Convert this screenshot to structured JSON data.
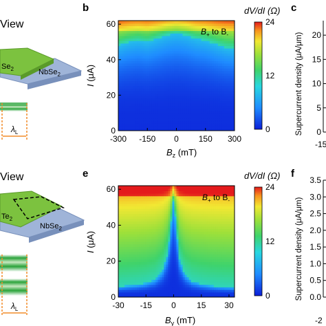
{
  "panels": {
    "a_title": "View",
    "d_title": "View",
    "b_letter": "b",
    "c_letter": "c",
    "e_letter": "e",
    "f_letter": "f",
    "nbse2_top": "NbSe",
    "nbse2_top_sub": "2",
    "se2_top": "Se",
    "se2_top_sub": "2",
    "nbse2_bottom": "NbSe",
    "nbse2_bottom_sub": "2",
    "te2_bottom": "Te",
    "te2_bottom_sub": "2",
    "lambda_top": "λ",
    "lambda_top_sub": "L",
    "lambda_bottom": "λ",
    "lambda_bottom_sub": "L"
  },
  "colors": {
    "flake_green": "#7cc23f",
    "flake_green_dark": "#5a9a2a",
    "substrate_blue": "#9fb4d8",
    "substrate_blue_dark": "#7890bb",
    "lambda_orange": "#f28c28",
    "stripe_green": "#2aa33a"
  },
  "chart_data": [
    {
      "type": "heatmap",
      "panel": "b",
      "xlabel": "B",
      "xlabel_sub": "z",
      "xlabel_unit": " (mT)",
      "ylabel": "I",
      "ylabel_unit": " (μA)",
      "x_ticks": [
        "-300",
        "-150",
        "0",
        "150",
        "300"
      ],
      "x_tick_values": [
        -300,
        -150,
        0,
        150,
        300
      ],
      "y_ticks": [
        "0",
        "20",
        "40",
        "60"
      ],
      "y_tick_values": [
        0,
        20,
        40,
        60
      ],
      "xlim": [
        -300,
        300
      ],
      "ylim": [
        0,
        62
      ],
      "annotation": "B",
      "annotation_sub1": "+",
      "annotation_mid": " to B",
      "annotation_sub2": "-",
      "colorbar_label": "dV/dI (Ω)",
      "colorbar_ticks": [
        "0",
        "12",
        "24"
      ],
      "colorbar_range": [
        0,
        24
      ],
      "critical_current_curve": {
        "x": [
          -300,
          -250,
          -200,
          -150,
          -100,
          -50,
          0,
          50,
          100,
          150,
          200,
          250,
          300
        ],
        "y": [
          48,
          50,
          51,
          50,
          52,
          54,
          55,
          54,
          52,
          51,
          49,
          47,
          46
        ]
      }
    },
    {
      "type": "heatmap",
      "panel": "e",
      "xlabel": "B",
      "xlabel_sub": "y",
      "xlabel_unit": " (mT)",
      "ylabel": "I",
      "ylabel_unit": " (μA)",
      "x_ticks": [
        "-30",
        "-15",
        "0",
        "15",
        "30"
      ],
      "x_tick_values": [
        -30,
        -15,
        0,
        15,
        30
      ],
      "y_ticks": [
        "0",
        "20",
        "40",
        "60"
      ],
      "y_tick_values": [
        0,
        20,
        40,
        60
      ],
      "xlim": [
        -30,
        33
      ],
      "ylim": [
        0,
        62
      ],
      "annotation": "B",
      "annotation_sub1": "+",
      "annotation_mid": " to B",
      "annotation_sub2": "-",
      "colorbar_label": "dV/dI (Ω)",
      "colorbar_ticks": [
        "0",
        "12",
        "24"
      ],
      "colorbar_range": [
        0,
        24
      ],
      "critical_current_curve": {
        "x": [
          -30,
          -25,
          -20,
          -15,
          -10,
          -6,
          -3,
          -1.5,
          0,
          3,
          6,
          10,
          15,
          20,
          25,
          33
        ],
        "y": [
          6,
          6.5,
          7,
          8,
          10,
          15,
          25,
          40,
          55,
          22,
          13,
          9,
          7.5,
          6.5,
          6,
          5.5
        ]
      }
    },
    {
      "type": "line",
      "panel": "c",
      "ylabel": "Supercurrent density (μA/μm)",
      "y_ticks": [
        "0",
        "5",
        "10",
        "15",
        "20"
      ],
      "y_tick_values": [
        0,
        5,
        10,
        15,
        20
      ],
      "x_tick_partial": "-15",
      "ylim": [
        0,
        23
      ]
    },
    {
      "type": "line",
      "panel": "f",
      "ylabel": "Supercurrent density (μA/μm)",
      "y_ticks": [
        "0.0",
        "0.5",
        "1.0",
        "1.5",
        "2.0",
        "2.5",
        "3.0",
        "3.5"
      ],
      "y_tick_values": [
        0,
        0.5,
        1,
        1.5,
        2,
        2.5,
        3,
        3.5
      ],
      "x_tick_partial": "-2",
      "ylim": [
        0,
        3.5
      ]
    }
  ]
}
